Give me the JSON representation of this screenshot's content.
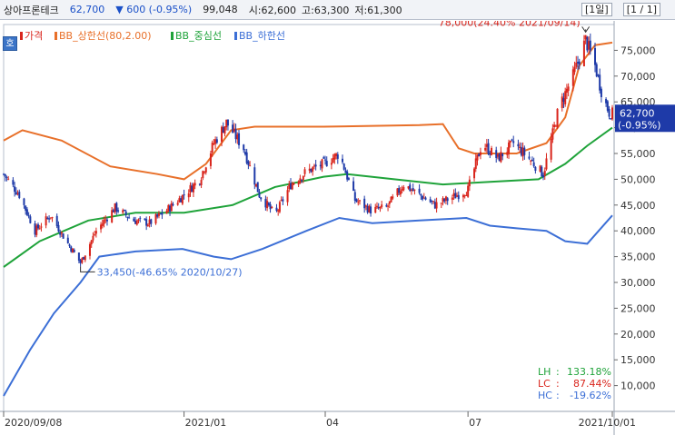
{
  "header": {
    "stock_name": "상아프론테크",
    "price": "62,700",
    "change_icon": "triangle-down-icon",
    "change": "▼ 600 (-0.95%)",
    "volume": "99,048",
    "open": "시:62,600",
    "high": "고:63,300",
    "low": "저:61,300",
    "period_button": "[1일]",
    "page_button": "[1 / 1]"
  },
  "corner_button": "호",
  "colors": {
    "up": "#d9251c",
    "down": "#1e3aa8",
    "bb_upper": "#e8702a",
    "bb_mid": "#1fa33a",
    "bb_lower": "#3c6fd6",
    "last_price_box": "#1e3aa8"
  },
  "chart_data": {
    "type": "candlestick",
    "legend": {
      "price": "가격",
      "upper": "BB_상한선(80,2.00)",
      "mid": "BB_중심선",
      "lower": "BB_하한선"
    },
    "x_tick_labels": [
      "2020/09/08",
      "2021/01",
      "04",
      "07",
      "2021/10/01"
    ],
    "x_ticks": [
      "2020-09-08",
      "2021-01-01",
      "2021-04-01",
      "2021-07-01",
      "2021-10-01"
    ],
    "x_range": [
      "2020-09-08",
      "2021-10-01"
    ],
    "y_range": [
      5000,
      80000
    ],
    "y_ticks": [
      10000,
      15000,
      20000,
      25000,
      30000,
      35000,
      40000,
      45000,
      50000,
      55000,
      60000,
      65000,
      70000,
      75000
    ],
    "y_tick_labels": [
      "10,000",
      "15,000",
      "20,000",
      "25,000",
      "30,000",
      "35,000",
      "40,000",
      "45,000",
      "50,000",
      "55,000",
      "60,000",
      "65,000",
      "70,000",
      "75,000"
    ],
    "close_path": [
      [
        "2020-09-08",
        51000
      ],
      [
        "2020-09-18",
        47000
      ],
      [
        "2020-09-28",
        40000
      ],
      [
        "2020-10-08",
        43000
      ],
      [
        "2020-10-18",
        38000
      ],
      [
        "2020-10-27",
        33800
      ],
      [
        "2020-11-06",
        40000
      ],
      [
        "2020-11-18",
        44500
      ],
      [
        "2020-11-30",
        42000
      ],
      [
        "2020-12-10",
        41500
      ],
      [
        "2020-12-21",
        44000
      ],
      [
        "2021-01-01",
        47000
      ],
      [
        "2021-01-11",
        50000
      ],
      [
        "2021-01-20",
        57000
      ],
      [
        "2021-01-28",
        61000
      ],
      [
        "2021-02-08",
        56000
      ],
      [
        "2021-02-18",
        47000
      ],
      [
        "2021-02-28",
        43000
      ],
      [
        "2021-03-10",
        49000
      ],
      [
        "2021-03-20",
        51500
      ],
      [
        "2021-03-31",
        53000
      ],
      [
        "2021-04-10",
        55000
      ],
      [
        "2021-04-20",
        46000
      ],
      [
        "2021-04-30",
        44000
      ],
      [
        "2021-05-10",
        44500
      ],
      [
        "2021-05-21",
        49000
      ],
      [
        "2021-05-31",
        47000
      ],
      [
        "2021-06-10",
        45000
      ],
      [
        "2021-06-21",
        46500
      ],
      [
        "2021-07-01",
        48000
      ],
      [
        "2021-07-10",
        57000
      ],
      [
        "2021-07-20",
        54000
      ],
      [
        "2021-07-30",
        57000
      ],
      [
        "2021-08-09",
        54000
      ],
      [
        "2021-08-18",
        51000
      ],
      [
        "2021-08-28",
        64000
      ],
      [
        "2021-09-06",
        70000
      ],
      [
        "2021-09-14",
        77000
      ],
      [
        "2021-09-20",
        72000
      ],
      [
        "2021-09-25",
        66000
      ],
      [
        "2021-09-29",
        63000
      ],
      [
        "2021-10-01",
        62700
      ]
    ],
    "bb_upper": [
      [
        "2020-09-08",
        57500
      ],
      [
        "2020-09-20",
        59500
      ],
      [
        "2020-10-15",
        57500
      ],
      [
        "2020-11-15",
        52500
      ],
      [
        "2020-12-15",
        51000
      ],
      [
        "2021-01-01",
        50000
      ],
      [
        "2021-01-15",
        53000
      ],
      [
        "2021-01-31",
        59500
      ],
      [
        "2021-02-15",
        60200
      ],
      [
        "2021-03-31",
        60200
      ],
      [
        "2021-05-31",
        60500
      ],
      [
        "2021-06-15",
        60700
      ],
      [
        "2021-06-25",
        56000
      ],
      [
        "2021-07-05",
        55000
      ],
      [
        "2021-07-15",
        55000
      ],
      [
        "2021-08-01",
        55000
      ],
      [
        "2021-08-20",
        57000
      ],
      [
        "2021-09-01",
        62000
      ],
      [
        "2021-09-10",
        72000
      ],
      [
        "2021-09-20",
        76000
      ],
      [
        "2021-10-01",
        76500
      ]
    ],
    "bb_mid": [
      [
        "2020-09-08",
        33000
      ],
      [
        "2020-10-01",
        38000
      ],
      [
        "2020-11-01",
        42000
      ],
      [
        "2020-12-01",
        43500
      ],
      [
        "2021-01-01",
        43500
      ],
      [
        "2021-02-01",
        45000
      ],
      [
        "2021-02-28",
        48500
      ],
      [
        "2021-03-31",
        50500
      ],
      [
        "2021-04-15",
        51000
      ],
      [
        "2021-05-15",
        50000
      ],
      [
        "2021-06-15",
        49000
      ],
      [
        "2021-07-15",
        49500
      ],
      [
        "2021-08-15",
        50000
      ],
      [
        "2021-09-01",
        53000
      ],
      [
        "2021-09-15",
        56500
      ],
      [
        "2021-10-01",
        60000
      ]
    ],
    "bb_lower": [
      [
        "2020-09-08",
        8000
      ],
      [
        "2020-09-25",
        17000
      ],
      [
        "2020-10-10",
        24000
      ],
      [
        "2020-10-27",
        30000
      ],
      [
        "2020-11-08",
        35000
      ],
      [
        "2020-12-01",
        36000
      ],
      [
        "2020-12-31",
        36500
      ],
      [
        "2021-01-20",
        35000
      ],
      [
        "2021-01-31",
        34500
      ],
      [
        "2021-02-20",
        36500
      ],
      [
        "2021-03-20",
        40000
      ],
      [
        "2021-04-10",
        42500
      ],
      [
        "2021-05-01",
        41500
      ],
      [
        "2021-05-31",
        42000
      ],
      [
        "2021-06-30",
        42500
      ],
      [
        "2021-07-15",
        41000
      ],
      [
        "2021-08-01",
        40500
      ],
      [
        "2021-08-20",
        40000
      ],
      [
        "2021-09-01",
        38000
      ],
      [
        "2021-09-15",
        37500
      ],
      [
        "2021-10-01",
        43000
      ]
    ],
    "annotations": [
      {
        "text": "78,000(24.40% 2021/09/14)",
        "date": "2021-09-14",
        "value": 78000,
        "kind": "high"
      },
      {
        "text": "33,450(-46.65% 2020/10/27)",
        "date": "2020-10-27",
        "value": 33450,
        "kind": "low"
      }
    ],
    "last_price": {
      "value": 62700,
      "price_label": "62,700",
      "change_label": "(-0.95%)"
    },
    "stats": [
      {
        "label": "LH",
        "value": "133.18%",
        "color": "#1fa33a"
      },
      {
        "label": "LC",
        "value": "87.44%",
        "color": "#d9251c"
      },
      {
        "label": "HC",
        "value": "-19.62%",
        "color": "#3c6fd6"
      }
    ]
  }
}
